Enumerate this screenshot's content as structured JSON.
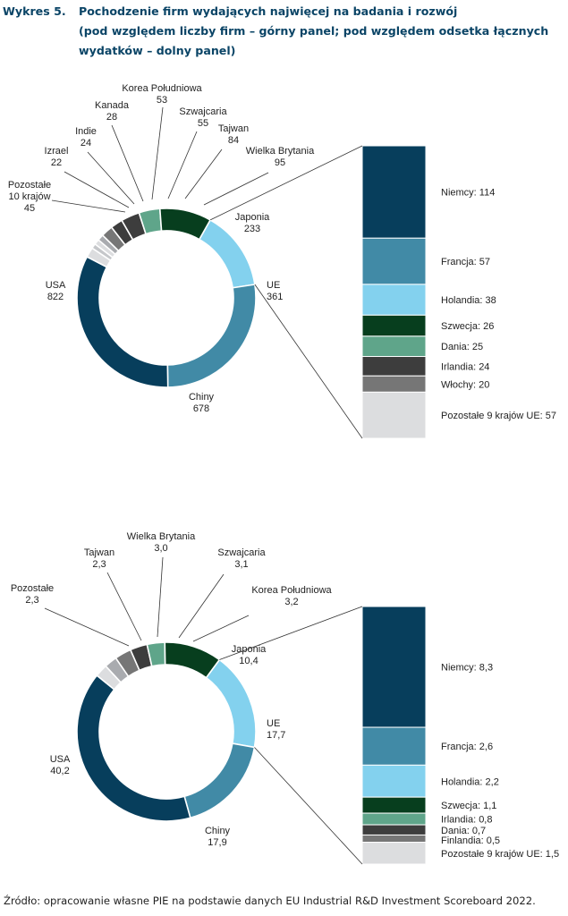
{
  "figure": {
    "number": "Wykres 5.",
    "title_lines": [
      "Pochodzenie firm wydających najwięcej na badania i rozwój",
      "(pod względem liczby firm – górny panel; pod względem odsetka łącznych",
      "wydatków – dolny panel)"
    ]
  },
  "source": "Źródło: opracowanie własne PIE na podstawie danych EU Industrial R&D Investment Scoreboard 2022.",
  "colors": {
    "usa": "#073e5c",
    "chiny": "#418aa6",
    "ue": "#83d1ee",
    "japonia": "#073e1e",
    "green_light": "#5fa58a",
    "dark_gray": "#3d3d3d",
    "mid_gray": "#767676",
    "light_gray": "#a9abaf",
    "lighter_gray": "#c5c7ca",
    "lightest_gray": "#dcdddf"
  },
  "chart_data": [
    {
      "type": "pie",
      "panel": "top",
      "slices": [
        {
          "label": "UE",
          "value": "361",
          "color": "ue"
        },
        {
          "label": "Chiny",
          "value": "678",
          "color": "chiny"
        },
        {
          "label": "USA",
          "value": "822",
          "color": "usa"
        },
        {
          "label": "Pozostałe\n10 krajów",
          "value": "45",
          "color": "lightest_gray"
        },
        {
          "label": "Izrael",
          "value": "22",
          "color": "lighter_gray"
        },
        {
          "label": "Indie",
          "value": "24",
          "color": "lightest_gray"
        },
        {
          "label": "Kanada",
          "value": "28",
          "color": "light_gray"
        },
        {
          "label": "Korea Południowa",
          "value": "53",
          "color": "mid_gray"
        },
        {
          "label": "Szwajcaria",
          "value": "55",
          "color": "dark_gray"
        },
        {
          "label": "Tajwan",
          "value": "84",
          "color": "dark_gray"
        },
        {
          "label": "Wielka Brytania",
          "value": "95",
          "color": "green_light"
        },
        {
          "label": "Japonia",
          "value": "233",
          "color": "japonia"
        }
      ],
      "breakdown": {
        "of": "UE",
        "items": [
          {
            "label": "Niemcy",
            "value": "114",
            "color": "usa"
          },
          {
            "label": "Francja",
            "value": "57",
            "color": "chiny"
          },
          {
            "label": "Holandia",
            "value": "38",
            "color": "ue"
          },
          {
            "label": "Szwecja",
            "value": "26",
            "color": "japonia"
          },
          {
            "label": "Dania",
            "value": "25",
            "color": "green_light"
          },
          {
            "label": "Irlandia",
            "value": "24",
            "color": "dark_gray"
          },
          {
            "label": "Włochy",
            "value": "20",
            "color": "mid_gray"
          },
          {
            "label": "Pozostałe 9 krajów UE",
            "value": "57",
            "color": "lightest_gray"
          }
        ]
      }
    },
    {
      "type": "pie",
      "panel": "bottom",
      "slices": [
        {
          "label": "UE",
          "value": "17,7",
          "color": "ue"
        },
        {
          "label": "Chiny",
          "value": "17,9",
          "color": "chiny"
        },
        {
          "label": "USA",
          "value": "40,2",
          "color": "usa"
        },
        {
          "label": "Pozostałe",
          "value": "2,3",
          "color": "lightest_gray"
        },
        {
          "label": "Tajwan",
          "value": "2,3",
          "color": "light_gray"
        },
        {
          "label": "Wielka Brytania",
          "value": "3,0",
          "color": "mid_gray"
        },
        {
          "label": "Szwajcaria",
          "value": "3,1",
          "color": "dark_gray"
        },
        {
          "label": "Korea Południowa",
          "value": "3,2",
          "color": "green_light"
        },
        {
          "label": "Japonia",
          "value": "10,4",
          "color": "japonia"
        }
      ],
      "breakdown": {
        "of": "UE",
        "items": [
          {
            "label": "Niemcy",
            "value": "8,3",
            "color": "usa"
          },
          {
            "label": "Francja",
            "value": "2,6",
            "color": "chiny"
          },
          {
            "label": "Holandia",
            "value": "2,2",
            "color": "ue"
          },
          {
            "label": "Szwecja",
            "value": "1,1",
            "color": "japonia"
          },
          {
            "label": "Irlandia",
            "value": "0,8",
            "color": "green_light"
          },
          {
            "label": "Dania",
            "value": "0,7",
            "color": "dark_gray"
          },
          {
            "label": "Finlandia",
            "value": "0,5",
            "color": "mid_gray"
          },
          {
            "label": "Pozostałe 9 krajów UE",
            "value": "1,5",
            "color": "lightest_gray"
          }
        ]
      }
    }
  ]
}
